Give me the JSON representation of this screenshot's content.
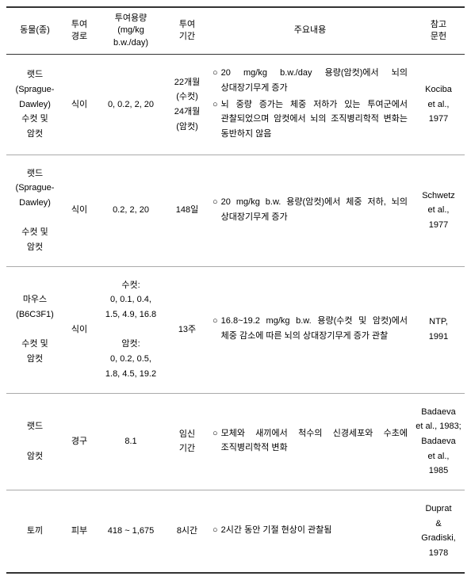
{
  "headers": {
    "animal": "동물(종)",
    "route": "투여\n경로",
    "dose": "투여용량\n(mg/kg\nb.w./day)",
    "period": "투여\n기간",
    "content": "주요내용",
    "reference": "참고\n문헌"
  },
  "rows": [
    {
      "animal": "랫드\n(Sprague-\nDawley)\n수컷 및\n암컷",
      "route": "식이",
      "dose": "0, 0.2, 2, 20",
      "period": "22개월\n(수컷)\n24개월\n(암컷)",
      "content_items": [
        "20 mg/kg b.w./day 용량(암컷)에서 뇌의 상대장기무게 증가",
        "뇌 중량 증가는 체중 저하가 있는 투여군에서 관찰되었으며 암컷에서 뇌의 조직병리학적 변화는 동반하지 않음"
      ],
      "reference": "Kociba\net al.,\n1977"
    },
    {
      "animal": "랫드\n(Sprague-\nDawley)\n\n수컷 및\n암컷",
      "route": "식이",
      "dose": "0.2, 2, 20",
      "period": "148일",
      "content_items": [
        "20 mg/kg b.w. 용량(암컷)에서 체중 저하, 뇌의 상대장기무게 증가"
      ],
      "reference": "Schwetz\net al.,\n1977"
    },
    {
      "animal": "마우스\n(B6C3F1)\n\n수컷 및\n암컷",
      "route": "식이",
      "dose": "수컷:\n0, 0.1, 0.4,\n1.5, 4.9, 16.8\n\n암컷:\n0, 0.2, 0.5,\n1.8, 4.5, 19.2",
      "period": "13주",
      "content_items": [
        "16.8~19.2 mg/kg b.w. 용량(수컷 및 암컷)에서 체중 감소에 따른 뇌의 상대장기무게 증가 관찰"
      ],
      "reference": "NTP,\n1991"
    },
    {
      "animal": "랫드\n\n암컷",
      "route": "경구",
      "dose": "8.1",
      "period": "임신\n기간",
      "content_items": [
        "모체와 새끼에서 척수의 신경세포와 수초에 조직병리학적 변화"
      ],
      "reference": "Badaeva\net al., 1983;\nBadaeva\net al.,\n1985"
    },
    {
      "animal": "토끼",
      "route": "피부",
      "dose": "418 ~ 1,675",
      "period": "8시간",
      "content_items": [
        "2시간 동안 기절 현상이 관찰됨"
      ],
      "reference": "Duprat\n&\nGradiski,\n1978"
    }
  ]
}
